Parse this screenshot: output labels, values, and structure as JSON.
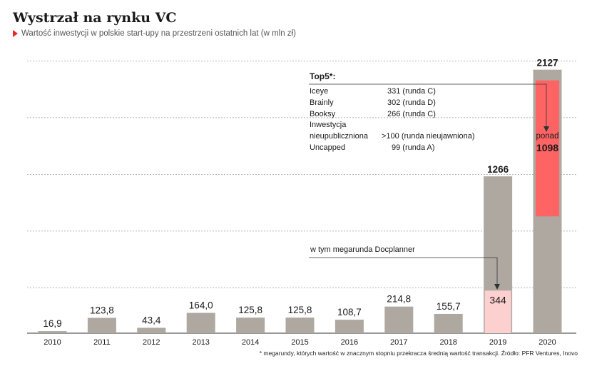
{
  "title": "Wystrzał na rynku VC",
  "subtitle": "Wartość inwestycji w polskie start-upy na przestrzeni ostatnich lat (w mln zł)",
  "footnote": "* megarundy, których wartość w znacznym stopniu przekracza średnią wartość transakcji. Źródło: PFR Ventures, Inovo",
  "colors": {
    "bar": "#aea8a1",
    "highlight_2019": "#fbd0cf",
    "highlight_2020": "#fe6464",
    "accent": "#e52a2a"
  },
  "chart_data": {
    "type": "bar",
    "categories": [
      "2010",
      "2011",
      "2012",
      "2013",
      "2014",
      "2015",
      "2016",
      "2017",
      "2018",
      "2019",
      "2020"
    ],
    "values": [
      16.9,
      123.8,
      43.4,
      164.0,
      125.8,
      125.8,
      108.7,
      214.8,
      155.7,
      1266,
      2127
    ],
    "value_labels": [
      "16,9",
      "123,8",
      "43,4",
      "164,0",
      "125,8",
      "125,8",
      "108,7",
      "214,8",
      "155,7",
      "1266",
      "2127"
    ],
    "ylim": [
      0,
      2200
    ],
    "grid": true,
    "highlights": [
      {
        "category": "2019",
        "value": 344,
        "label": "344",
        "annotation": "w tym megarunda Docplanner"
      },
      {
        "category": "2020",
        "value": 1098,
        "label_top": "ponad",
        "label": "1098"
      }
    ],
    "top5": {
      "heading": "Top5*:",
      "rows": [
        {
          "name": "Iceye",
          "value": "331 (runda C)"
        },
        {
          "name": "Brainly",
          "value": "302 (runda D)"
        },
        {
          "name": "Booksy",
          "value": "266 (runda C)"
        },
        {
          "name": "Inwestycja",
          "value": ""
        },
        {
          "name": "nieupubliczniona",
          "value": ">100 (runda nieujawniona)"
        },
        {
          "name": "Uncapped",
          "value": "99 (runda A)"
        }
      ]
    }
  }
}
